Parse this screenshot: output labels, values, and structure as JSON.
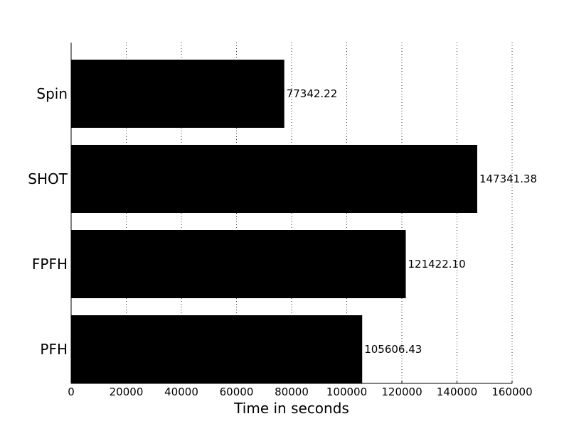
{
  "chart_data": {
    "type": "bar",
    "orientation": "horizontal",
    "categories": [
      "Spin",
      "SHOT",
      "FPFH",
      "PFH"
    ],
    "values": [
      77342.22,
      147341.38,
      121422.1,
      105606.43
    ],
    "value_labels": [
      "77342.22",
      "147341.38",
      "121422.10",
      "105606.43"
    ],
    "title": "",
    "xlabel": "Time in seconds",
    "ylabel": "",
    "xlim": [
      0,
      160000
    ],
    "xticks": [
      0,
      20000,
      40000,
      60000,
      80000,
      100000,
      120000,
      140000,
      160000
    ],
    "xtick_labels": [
      "0",
      "20000",
      "40000",
      "60000",
      "80000",
      "100000",
      "120000",
      "140000",
      "160000"
    ],
    "grid": "x",
    "bar_color": "#000000"
  }
}
